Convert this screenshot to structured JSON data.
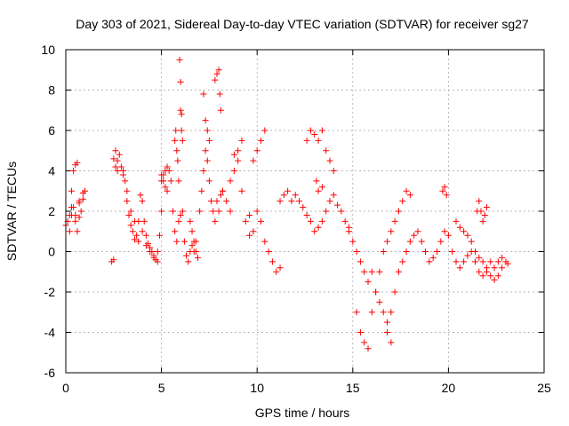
{
  "chart_data": {
    "type": "scatter",
    "title": "Day 303 of 2021, Sidereal Day-to-day VTEC variation (SDTVAR) for receiver sg27",
    "xlabel": "GPS time / hours",
    "ylabel": "SDTVAR / TECUs",
    "xlim": [
      0,
      25
    ],
    "ylim": [
      -6,
      10
    ],
    "xticks": [
      0,
      5,
      10,
      15,
      20,
      25
    ],
    "yticks": [
      -6,
      -4,
      -2,
      0,
      2,
      4,
      6,
      8,
      10
    ],
    "xtick_labels": [
      "0",
      "5",
      "10",
      "15",
      "20",
      "25"
    ],
    "ytick_labels": [
      "-6",
      "-4",
      "-2",
      "0",
      "2",
      "4",
      "6",
      "8",
      "10"
    ],
    "grid": true,
    "marker": "+",
    "marker_color": "#ff0000",
    "series": [
      {
        "name": "SDTVAR",
        "x": [
          0.0,
          0.1,
          0.2,
          0.3,
          0.4,
          0.5,
          0.6,
          0.7,
          0.8,
          0.9,
          1.0,
          0.2,
          0.3,
          0.4,
          0.5,
          0.6,
          0.7,
          0.3,
          0.5,
          0.7,
          0.9,
          2.4,
          2.5,
          2.6,
          2.7,
          2.8,
          2.9,
          3.0,
          3.1,
          3.2,
          3.3,
          3.4,
          3.5,
          3.6,
          3.7,
          3.8,
          3.9,
          4.0,
          4.1,
          4.2,
          4.3,
          4.4,
          4.5,
          4.6,
          4.7,
          4.8,
          4.9,
          5.0,
          5.1,
          5.2,
          5.3,
          2.5,
          2.6,
          2.7,
          3.0,
          3.2,
          3.4,
          3.6,
          3.8,
          4.0,
          4.2,
          4.4,
          4.6,
          4.8,
          5.0,
          5.0,
          5.1,
          5.2,
          5.3,
          5.4,
          5.5,
          5.6,
          5.7,
          5.8,
          5.9,
          6.0,
          6.1,
          6.2,
          6.3,
          6.4,
          6.5,
          6.6,
          6.7,
          6.8,
          5.7,
          5.75,
          5.8,
          5.85,
          5.9,
          5.95,
          6.0,
          6.05,
          6.0,
          6.05,
          6.1,
          6.5,
          6.6,
          6.7,
          6.8,
          6.9,
          7.0,
          7.1,
          7.2,
          7.3,
          7.4,
          7.5,
          7.6,
          7.7,
          7.8,
          7.9,
          8.0,
          8.1,
          8.2,
          7.2,
          7.3,
          7.4,
          7.5,
          7.8,
          7.9,
          8.0,
          8.05,
          8.1,
          8.2,
          8.4,
          8.6,
          8.8,
          9.0,
          9.2,
          9.4,
          9.6,
          9.8,
          10.0,
          10.2,
          10.4,
          10.6,
          10.8,
          11.0,
          11.2,
          8.6,
          8.8,
          9.0,
          9.2,
          9.6,
          9.8,
          10.0,
          10.2,
          10.4,
          11.2,
          11.4,
          11.6,
          11.8,
          12.0,
          12.2,
          12.4,
          12.6,
          12.8,
          13.0,
          13.2,
          13.4,
          13.6,
          13.8,
          14.0,
          14.2,
          14.4,
          14.6,
          14.8,
          12.6,
          12.8,
          13.0,
          13.2,
          13.4,
          13.6,
          13.8,
          14.0,
          13.1,
          13.2,
          13.4,
          14.8,
          15.0,
          15.2,
          15.4,
          15.6,
          15.8,
          16.0,
          16.2,
          16.4,
          16.6,
          16.8,
          17.0,
          15.2,
          15.4,
          15.6,
          15.8,
          16.0,
          16.2,
          16.4,
          16.6,
          16.8,
          17.0,
          17.2,
          17.4,
          17.6,
          17.8,
          18.0,
          16.8,
          17.0,
          17.2,
          17.4,
          17.6,
          17.8,
          18.0,
          18.2,
          18.4,
          18.6,
          18.8,
          19.0,
          19.2,
          19.4,
          19.6,
          19.8,
          20.0,
          20.2,
          20.4,
          20.6,
          20.8,
          21.0,
          21.2,
          21.4,
          21.6,
          21.8,
          22.0,
          22.2,
          22.4,
          22.6,
          22.8,
          19.7,
          19.8,
          19.9,
          21.5,
          21.6,
          21.7,
          21.8,
          21.9,
          22.0,
          20.4,
          20.6,
          20.8,
          21.0,
          21.2,
          21.4,
          21.6,
          21.8,
          22.0,
          22.2,
          22.4,
          22.6,
          22.8,
          23.0,
          23.1
        ],
        "y": [
          1.3,
          1.5,
          1.0,
          1.8,
          2.2,
          1.5,
          1.0,
          1.7,
          2.0,
          2.6,
          3.0,
          1.8,
          3.0,
          4.0,
          4.3,
          4.4,
          2.5,
          2.2,
          1.8,
          2.4,
          2.9,
          -0.5,
          4.6,
          5.0,
          4.5,
          4.8,
          4.2,
          3.8,
          3.5,
          2.5,
          1.8,
          1.3,
          1.0,
          0.6,
          0.8,
          1.5,
          2.8,
          2.5,
          1.5,
          0.8,
          0.4,
          0.2,
          0.0,
          -0.2,
          -0.4,
          0.0,
          0.8,
          2.0,
          3.5,
          4.0,
          4.2,
          -0.4,
          4.2,
          4.0,
          4.0,
          3.0,
          2.0,
          1.5,
          0.5,
          1.0,
          0.3,
          0.0,
          -0.3,
          -0.5,
          3.8,
          3.5,
          3.8,
          3.2,
          3.0,
          4.0,
          3.5,
          2.0,
          1.0,
          0.5,
          1.5,
          1.8,
          2.0,
          0.5,
          -0.2,
          -0.5,
          0.0,
          0.3,
          0.0,
          0.5,
          5.5,
          6.0,
          5.0,
          4.5,
          3.5,
          9.5,
          8.4,
          6.8,
          7.0,
          6.0,
          5.5,
          1.5,
          1.0,
          0.5,
          0.0,
          -0.3,
          2.0,
          3.0,
          4.0,
          5.0,
          4.5,
          3.5,
          2.5,
          2.0,
          1.5,
          2.5,
          2.0,
          2.8,
          3.0,
          7.8,
          6.5,
          6.0,
          5.5,
          8.5,
          8.8,
          9.0,
          7.8,
          7.0,
          3.0,
          2.5,
          3.5,
          4.0,
          4.5,
          3.0,
          1.5,
          0.8,
          1.0,
          2.0,
          1.5,
          0.5,
          0.0,
          -0.5,
          -1.0,
          -0.8,
          2.0,
          4.8,
          5.0,
          5.5,
          1.8,
          4.5,
          5.0,
          5.5,
          6.0,
          2.5,
          2.8,
          3.0,
          2.5,
          2.8,
          2.5,
          2.2,
          1.8,
          1.5,
          1.0,
          1.2,
          1.5,
          2.0,
          2.5,
          2.8,
          2.3,
          2.0,
          1.5,
          1.2,
          5.5,
          6.0,
          5.8,
          5.5,
          6.0,
          5.0,
          4.5,
          4.0,
          3.5,
          3.0,
          3.2,
          1.0,
          0.5,
          0.0,
          -0.5,
          -1.0,
          -1.5,
          -1.0,
          -2.0,
          -2.5,
          -3.0,
          -3.5,
          -4.5,
          -3.0,
          -4.0,
          -4.5,
          -4.8,
          -3.0,
          -2.0,
          -1.0,
          0.0,
          0.5,
          1.0,
          1.5,
          2.0,
          2.5,
          3.0,
          2.8,
          -4.0,
          -3.0,
          -2.0,
          -1.0,
          -0.5,
          0.0,
          0.5,
          0.8,
          1.0,
          0.5,
          0.0,
          -0.5,
          -0.3,
          0.0,
          0.5,
          1.0,
          0.8,
          0.0,
          -0.5,
          -0.8,
          -0.5,
          -0.2,
          0.0,
          -0.5,
          -1.0,
          -1.2,
          -1.0,
          -0.5,
          -0.8,
          -0.5,
          -0.3,
          3.0,
          3.2,
          2.8,
          2.0,
          2.5,
          2.0,
          1.5,
          1.8,
          2.2,
          1.5,
          1.2,
          1.0,
          0.8,
          0.5,
          0.0,
          -0.3,
          -0.5,
          -0.8,
          -1.2,
          -1.4,
          -1.2,
          -0.8,
          -0.5,
          -0.6
        ]
      }
    ]
  }
}
